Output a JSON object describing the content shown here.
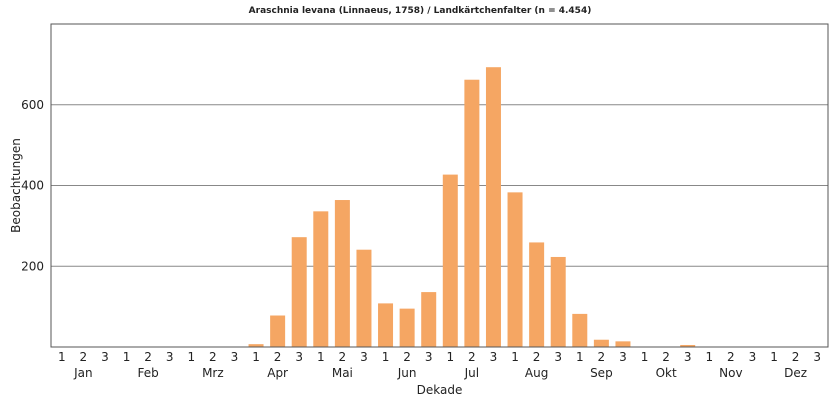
{
  "chart_data": {
    "type": "bar",
    "title": "Araschnia levana (Linnaeus, 1758) / Landkärtchenfalter (n = 4.454)",
    "xlabel": "Dekade",
    "ylabel": "Beobachtungen",
    "ylim": [
      0,
      800
    ],
    "yticks": [
      200,
      400,
      600
    ],
    "grid": true,
    "bar_color": "#f5a663",
    "months": [
      "Jan",
      "Feb",
      "Mrz",
      "Apr",
      "Mai",
      "Jun",
      "Jul",
      "Aug",
      "Sep",
      "Okt",
      "Nov",
      "Dez"
    ],
    "decade_labels": [
      "1",
      "2",
      "3"
    ],
    "values": [
      0,
      0,
      0,
      1,
      1,
      0,
      0,
      0,
      1,
      7,
      78,
      272,
      336,
      364,
      241,
      108,
      95,
      136,
      427,
      662,
      693,
      383,
      259,
      223,
      82,
      18,
      14,
      1,
      1,
      5,
      0,
      0,
      0,
      0,
      0,
      0
    ]
  }
}
